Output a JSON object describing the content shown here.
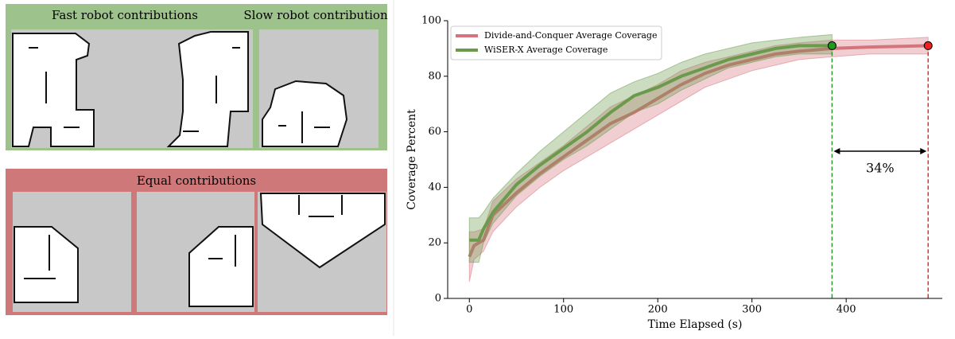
{
  "panels": {
    "top": [
      "Fast robot contributions",
      "Slow robot contribution"
    ],
    "bottom": [
      "Equal contributions"
    ]
  },
  "chart_data": {
    "type": "line",
    "xlabel": "Time Elapsed (s)",
    "ylabel": "Coverage Percent",
    "xlim": [
      -23,
      502
    ],
    "ylim": [
      0,
      100
    ],
    "xticks": [
      0,
      100,
      200,
      300,
      400
    ],
    "yticks": [
      0,
      20,
      40,
      60,
      80,
      100
    ],
    "legend": "upper left",
    "annotation": "34%",
    "series": [
      {
        "name": "Divide-and-Conquer Average Coverage",
        "color": "#d5747c",
        "x": [
          0,
          5,
          15,
          25,
          50,
          75,
          100,
          125,
          150,
          175,
          200,
          225,
          250,
          275,
          300,
          325,
          350,
          385,
          425,
          487
        ],
        "values": [
          15,
          19,
          21,
          30,
          38,
          45,
          51,
          57,
          63,
          67,
          72,
          77,
          81,
          84,
          86,
          88,
          89,
          90,
          90.5,
          91
        ],
        "lower": [
          6,
          14,
          17,
          24,
          33,
          40,
          46,
          51,
          56,
          61,
          66,
          71,
          76,
          79,
          82,
          84,
          86,
          87,
          88,
          88
        ],
        "upper": [
          24,
          24,
          25,
          35,
          43,
          49,
          55,
          62,
          69,
          73,
          77,
          82,
          85,
          87,
          89,
          91,
          92,
          93,
          93,
          94
        ]
      },
      {
        "name": "WiSER-X Average Coverage",
        "color": "#6a9a4c",
        "x": [
          0,
          5,
          10,
          15,
          25,
          50,
          75,
          100,
          125,
          150,
          175,
          200,
          225,
          250,
          275,
          300,
          325,
          350,
          385
        ],
        "values": [
          21,
          21,
          21,
          25,
          31,
          41,
          48,
          54,
          60,
          67,
          73,
          76,
          80,
          83,
          86,
          88,
          90,
          91,
          91
        ],
        "lower": [
          13,
          13,
          13,
          20,
          27,
          37,
          44,
          50,
          55,
          61,
          67,
          70,
          75,
          79,
          83,
          85,
          87,
          88,
          88
        ],
        "upper": [
          29,
          29,
          29,
          31,
          36,
          45,
          53,
          60,
          67,
          74,
          78,
          81,
          85,
          88,
          90,
          92,
          93,
          94,
          95
        ]
      }
    ]
  }
}
